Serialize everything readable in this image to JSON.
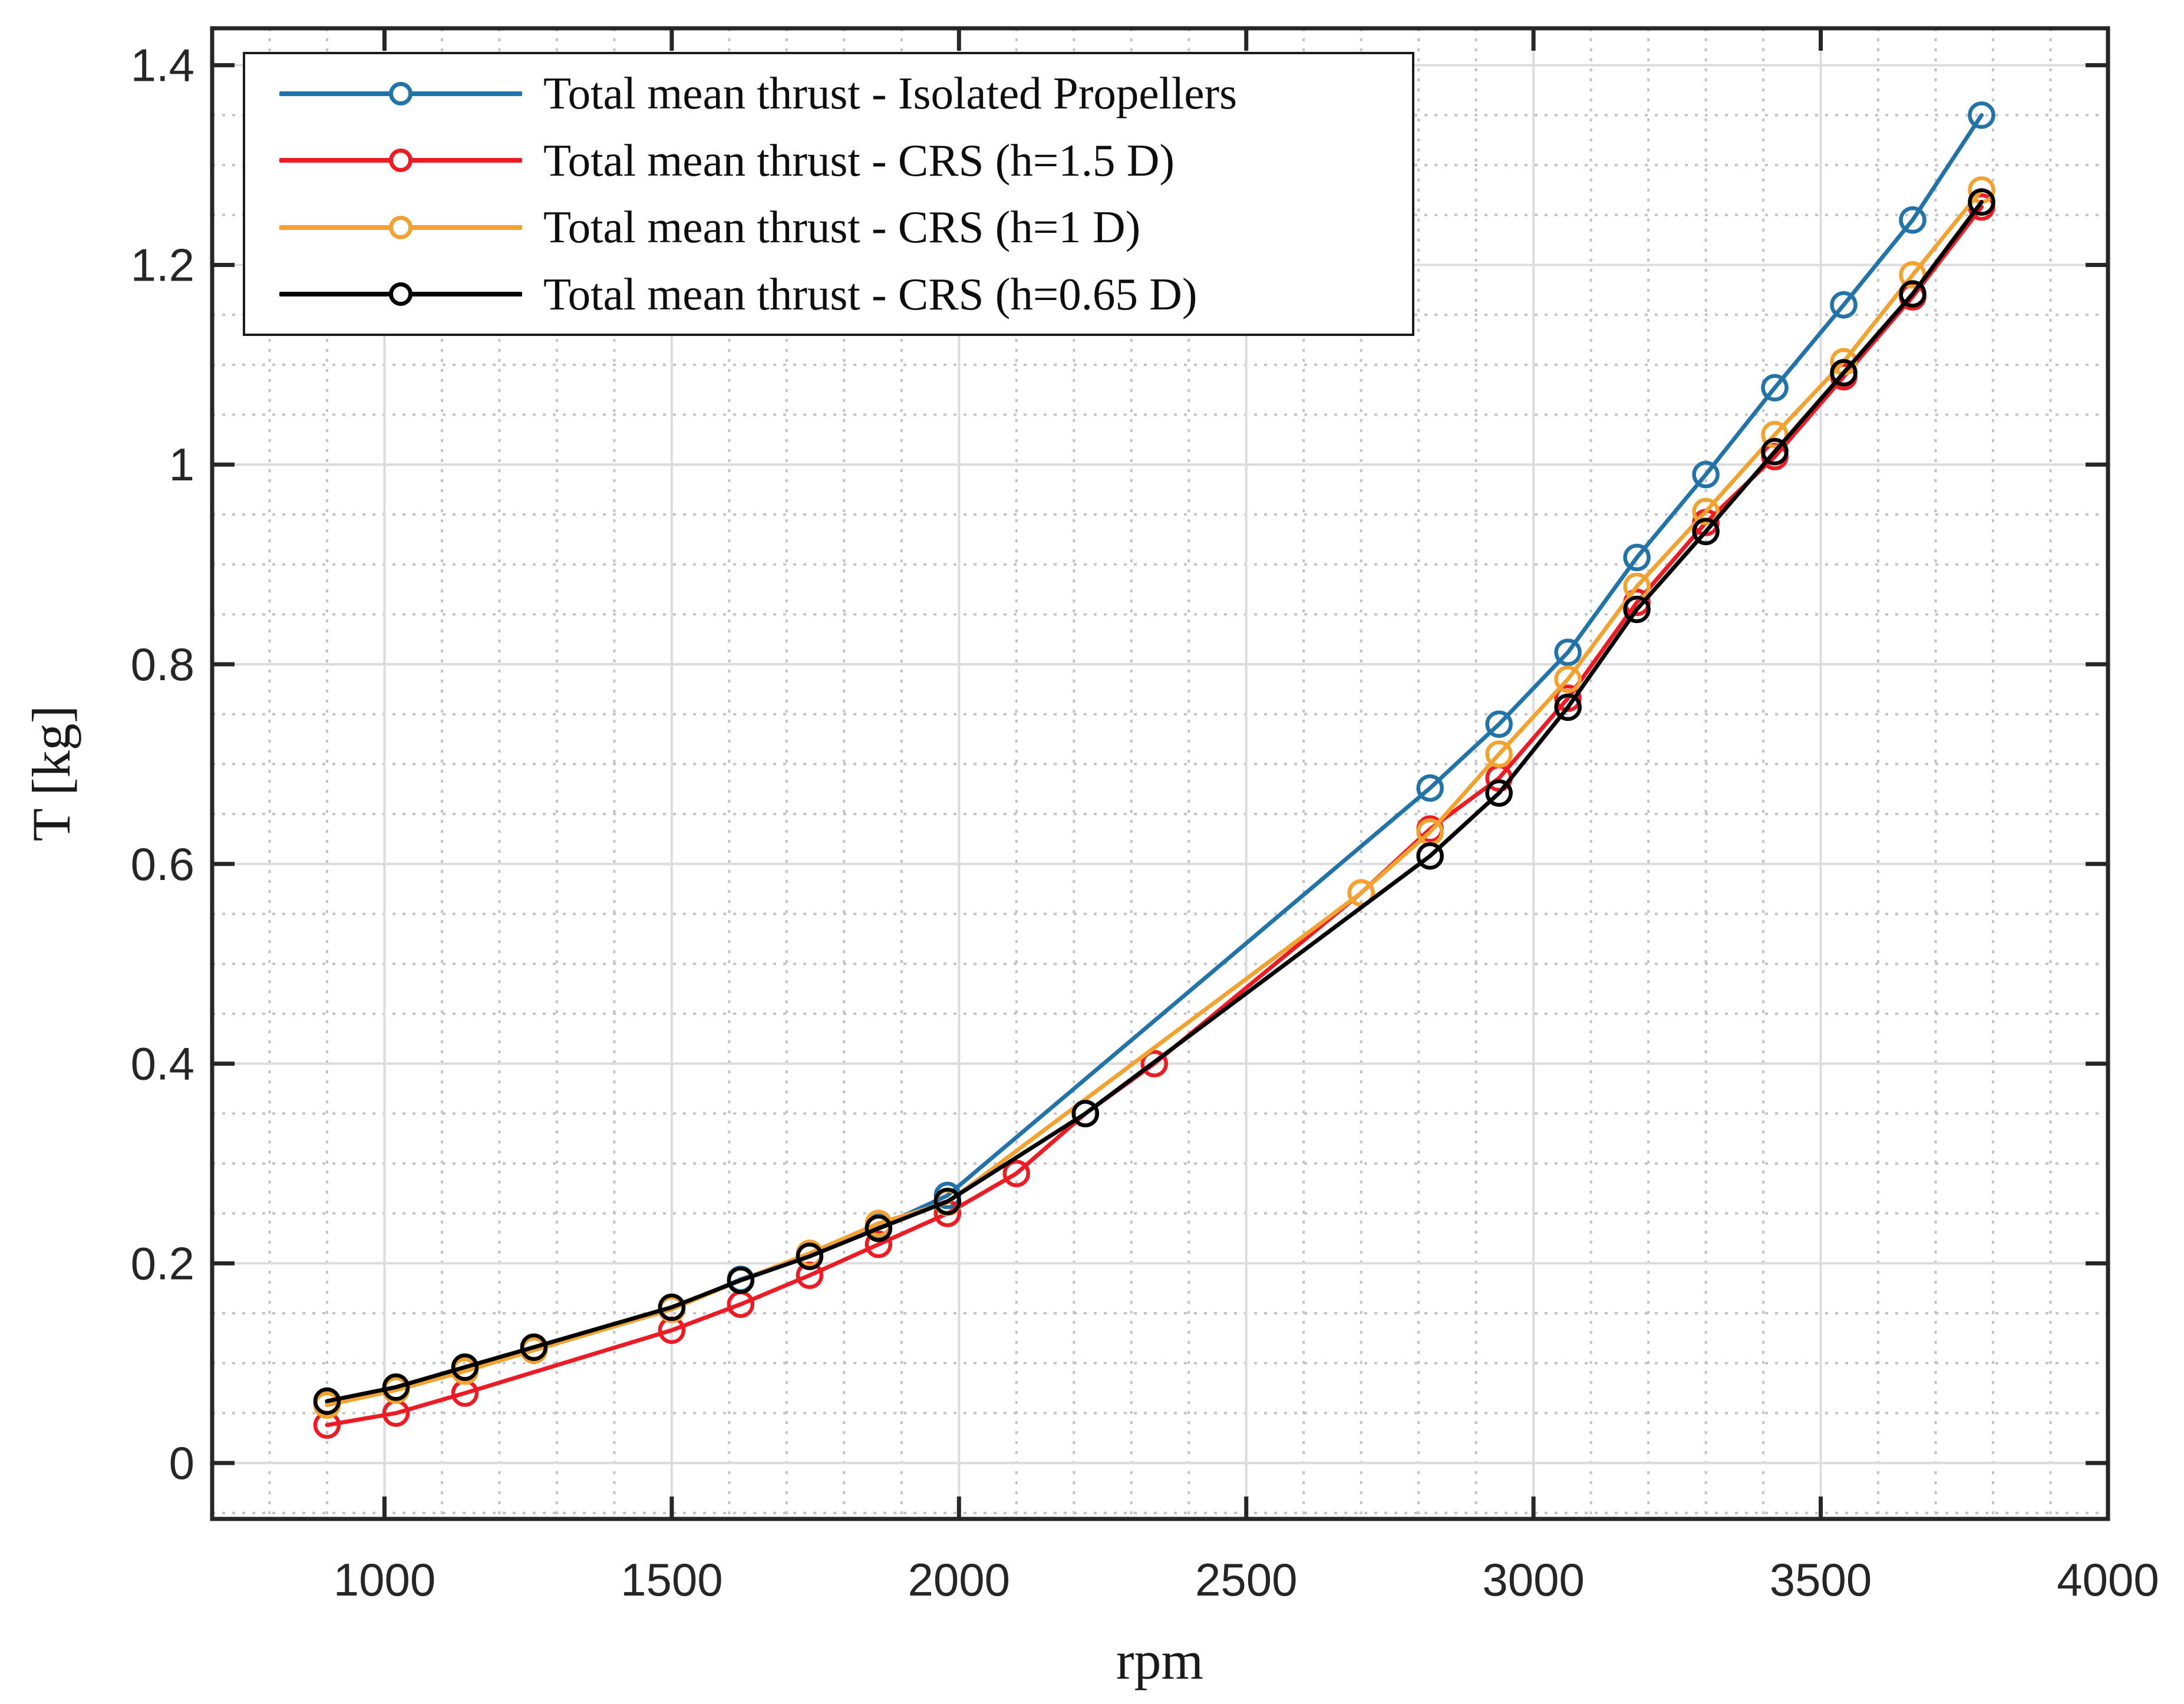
{
  "chart_data": {
    "type": "line",
    "title": "",
    "xlabel": "rpm",
    "ylabel": "T [kg]",
    "xlim": [
      700,
      4000
    ],
    "ylim": [
      -0.056,
      1.437
    ],
    "grid": {
      "major": true,
      "minor": true
    },
    "legend_position": "top-left",
    "xticks": {
      "values": [
        1000,
        1500,
        2000,
        2500,
        3000,
        3500,
        4000
      ],
      "labels": [
        "1000",
        "1500",
        "2000",
        "2500",
        "3000",
        "3500",
        "4000"
      ]
    },
    "yticks": {
      "values": [
        0,
        0.2,
        0.4,
        0.6,
        0.8,
        1.0,
        1.2,
        1.4
      ],
      "labels": [
        "0",
        "0.2",
        "0.4",
        "0.6",
        "0.8",
        "1",
        "1.2",
        "1.4"
      ]
    },
    "minor_x_step": 100,
    "minor_y_step": 0.05,
    "series": [
      {
        "name": "Total mean thrust - Isolated Propellers",
        "color": "#2273A8",
        "marker": "circle",
        "x": [
          900,
          1020,
          1140,
          1260,
          1500,
          1620,
          1740,
          1860,
          1980,
          2820,
          2940,
          3060,
          3180,
          3300,
          3420,
          3540,
          3660,
          3780
        ],
        "y": [
          0.06,
          0.074,
          0.093,
          0.113,
          0.154,
          0.184,
          0.207,
          0.236,
          0.268,
          0.676,
          0.74,
          0.812,
          0.907,
          0.99,
          1.077,
          1.16,
          1.245,
          1.35
        ]
      },
      {
        "name": "Total mean thrust - CRS (h=1.5 D)",
        "color": "#ED1B24",
        "marker": "circle",
        "x": [
          900,
          1020,
          1140,
          1500,
          1620,
          1740,
          1860,
          1980,
          2100,
          2220,
          2340,
          2700,
          2820,
          2940,
          3060,
          3180,
          3300,
          3420,
          3540,
          3660,
          3780
        ],
        "y": [
          0.038,
          0.05,
          0.07,
          0.133,
          0.159,
          0.188,
          0.219,
          0.25,
          0.29,
          0.35,
          0.4,
          0.571,
          0.635,
          0.686,
          0.766,
          0.862,
          0.942,
          1.008,
          1.088,
          1.168,
          1.258
        ]
      },
      {
        "name": "Total mean thrust - CRS (h=1 D)",
        "color": "#F2A231",
        "marker": "circle",
        "x": [
          900,
          1020,
          1140,
          1260,
          1500,
          1620,
          1740,
          1860,
          1980,
          2700,
          2820,
          2940,
          3060,
          3180,
          3300,
          3420,
          3540,
          3660,
          3780
        ],
        "y": [
          0.058,
          0.073,
          0.092,
          0.113,
          0.154,
          0.183,
          0.21,
          0.24,
          0.261,
          0.571,
          0.632,
          0.71,
          0.785,
          0.878,
          0.953,
          1.03,
          1.103,
          1.19,
          1.275
        ]
      },
      {
        "name": "Total mean thrust - CRS (h=0.65 D)",
        "color": "#000000",
        "marker": "circle",
        "x": [
          900,
          1020,
          1140,
          1260,
          1500,
          1620,
          1740,
          1860,
          1980,
          2220,
          2820,
          2940,
          3060,
          3180,
          3300,
          3420,
          3540,
          3660,
          3780
        ],
        "y": [
          0.062,
          0.076,
          0.096,
          0.116,
          0.156,
          0.183,
          0.207,
          0.235,
          0.262,
          0.35,
          0.608,
          0.671,
          0.757,
          0.855,
          0.933,
          1.013,
          1.092,
          1.171,
          1.263
        ]
      }
    ],
    "style_colors": {
      "frame": "#262626",
      "major_grid": "#dcdcdc",
      "minor_grid": "#c3c3c3",
      "background": "#ffffff"
    }
  }
}
